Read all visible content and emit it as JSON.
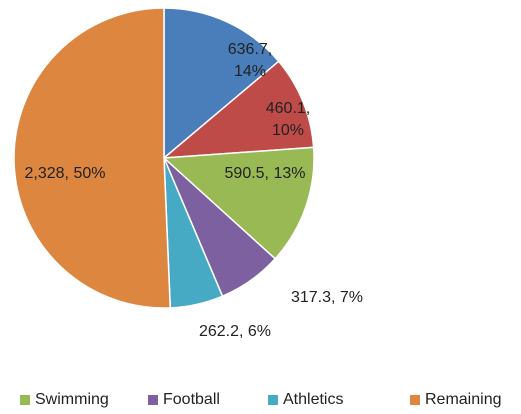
{
  "chart_data": {
    "type": "pie",
    "categories": [
      null,
      null,
      "Swimming",
      "Football",
      "Athletics",
      "Remaining"
    ],
    "values": [
      636.7,
      460.1,
      590.5,
      317.3,
      262.2,
      2328
    ],
    "value_labels": [
      "636.7, 14%",
      "460.1, 10%",
      "590.5, 13%",
      "317.3, 7%",
      "262.2, 6%",
      "2,328, 50%"
    ],
    "colors": [
      "#4a7ebb",
      "#be4b48",
      "#98b954",
      "#7d60a0",
      "#46aac5",
      "#dd8640"
    ],
    "legend": "bottom"
  }
}
